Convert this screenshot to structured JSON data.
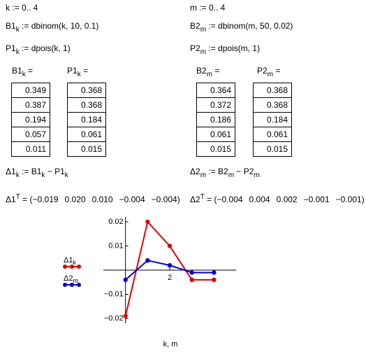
{
  "worksheet": {
    "k_range": [
      {
        "t": "k := 0.. 4"
      }
    ],
    "b1_def": [
      {
        "t": "B1"
      },
      {
        "t": "k",
        "sub": true
      },
      {
        "t": " := dbinom(k, 10, 0.1)"
      }
    ],
    "p1_def": [
      {
        "t": "P1"
      },
      {
        "t": "k",
        "sub": true
      },
      {
        "t": " := dpois(k, 1)"
      }
    ],
    "m_range": [
      {
        "t": "m := 0.. 4"
      }
    ],
    "b2_def": [
      {
        "t": "B2"
      },
      {
        "t": "m",
        "sub": true
      },
      {
        "t": " := dbinom(m, 50, 0.02)"
      }
    ],
    "p2_def": [
      {
        "t": "P2"
      },
      {
        "t": "m",
        "sub": true
      },
      {
        "t": " := dpois(m, 1)"
      }
    ],
    "b1_head": [
      {
        "t": "B1"
      },
      {
        "t": "k",
        "sub": true
      },
      {
        "t": " ="
      }
    ],
    "p1_head": [
      {
        "t": "P1"
      },
      {
        "t": "k",
        "sub": true
      },
      {
        "t": " ="
      }
    ],
    "b2_head": [
      {
        "t": "B2"
      },
      {
        "t": "m",
        "sub": true
      },
      {
        "t": " ="
      }
    ],
    "p2_head": [
      {
        "t": "P2"
      },
      {
        "t": "m",
        "sub": true
      },
      {
        "t": " ="
      }
    ],
    "b1_values": [
      "0.349",
      "0.387",
      "0.194",
      "0.057",
      "0.011"
    ],
    "p1_values": [
      "0.368",
      "0.368",
      "0.184",
      "0.061",
      "0.015"
    ],
    "b2_values": [
      "0.364",
      "0.372",
      "0.186",
      "0.061",
      "0.015"
    ],
    "p2_values": [
      "0.368",
      "0.368",
      "0.184",
      "0.061",
      "0.015"
    ],
    "d1_def": [
      {
        "t": "Δ1"
      },
      {
        "t": "k",
        "sub": true
      },
      {
        "t": " := B1"
      },
      {
        "t": "k",
        "sub": true
      },
      {
        "t": " − P1"
      },
      {
        "t": "k",
        "sub": true
      }
    ],
    "d2_def": [
      {
        "t": "Δ2"
      },
      {
        "t": "m",
        "sub": true
      },
      {
        "t": " := B2"
      },
      {
        "t": "m",
        "sub": true
      },
      {
        "t": " − P2"
      },
      {
        "t": "m",
        "sub": true
      }
    ],
    "d1_transpose": {
      "lhs": [
        {
          "t": "Δ1"
        },
        {
          "t": "T",
          "sup": true
        },
        {
          "t": " = "
        }
      ],
      "values": [
        "−0.019",
        "0.020",
        "0.010",
        "−0.004",
        "−0.004"
      ]
    },
    "d2_transpose": {
      "lhs": [
        {
          "t": "Δ2"
        },
        {
          "t": "T",
          "sup": true
        },
        {
          "t": " = "
        }
      ],
      "values": [
        "−0.004",
        "0.004",
        "0.002",
        "−0.001",
        "−0.001"
      ]
    }
  },
  "chart_data": {
    "type": "line",
    "x_label": "k, m",
    "x": [
      0,
      1,
      2,
      3,
      4
    ],
    "series": [
      {
        "name": "Δ1",
        "name_sub": "k",
        "color": "#e00000",
        "values": [
          -0.019,
          0.02,
          0.01,
          -0.004,
          -0.004
        ]
      },
      {
        "name": "Δ2",
        "name_sub": "m",
        "color": "#0000e0",
        "values": [
          -0.004,
          0.004,
          0.002,
          -0.001,
          -0.001
        ]
      }
    ],
    "xlim": [
      -1,
      5
    ],
    "xticks": [
      2
    ],
    "ylim": [
      -0.022,
      0.022
    ],
    "yticks": [
      0.02,
      0.01,
      {
        "value": -0.01,
        "label": "−0.01"
      },
      {
        "value": -0.02,
        "label": "−0.02"
      }
    ]
  }
}
